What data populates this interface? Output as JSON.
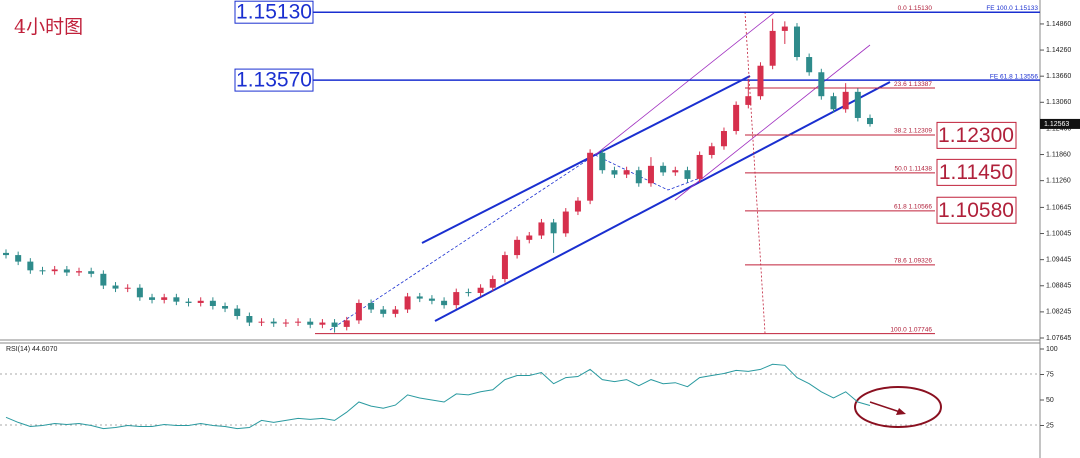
{
  "chart_data": {
    "type": "candlestick",
    "title": "4小时图",
    "up_color": "#d6304d",
    "down_color": "#2e8b8b",
    "ylim": [
      1.07645,
      1.1541
    ],
    "yticks": [
      {
        "value": 1.1486,
        "label": "1.14860"
      },
      {
        "value": 1.1426,
        "label": "1.14260"
      },
      {
        "value": 1.1366,
        "label": "1.13660"
      },
      {
        "value": 1.1306,
        "label": "1.13060"
      },
      {
        "value": 1.1246,
        "label": "1.12460"
      },
      {
        "value": 1.1186,
        "label": "1.11860"
      },
      {
        "value": 1.1126,
        "label": "1.11260"
      },
      1.10645,
      1.10045,
      1.09445,
      1.08845,
      1.08245,
      1.07645
    ],
    "open": [
      1.096,
      1.0955,
      1.094,
      1.092,
      1.0918,
      1.0922,
      1.0915,
      1.0918,
      1.0912,
      1.0885,
      1.0878,
      1.088,
      1.0858,
      1.0852,
      1.0858,
      1.0848,
      1.0845,
      1.085,
      1.0838,
      1.0832,
      1.0815,
      1.08,
      1.0802,
      1.0798,
      1.08,
      1.0802,
      1.0795,
      1.08,
      1.079,
      1.0805,
      1.0845,
      1.083,
      1.082,
      1.083,
      1.086,
      1.0855,
      1.085,
      1.084,
      1.087,
      1.0868,
      1.088,
      1.09,
      1.0955,
      1.099,
      1.1,
      1.103,
      1.1005,
      1.1055,
      1.108,
      1.119,
      1.115,
      1.114,
      1.115,
      1.112,
      1.116,
      1.1145,
      1.115,
      1.113,
      1.1185,
      1.1205,
      1.124,
      1.13,
      1.132,
      1.139,
      1.147,
      1.148,
      1.141,
      1.1375,
      1.132,
      1.129,
      1.133,
      1.127
    ],
    "high": [
      1.0968,
      1.0963,
      1.0948,
      1.0928,
      1.093,
      1.093,
      1.0926,
      1.0926,
      1.092,
      1.0893,
      1.0888,
      1.0888,
      1.0866,
      1.0866,
      1.0866,
      1.0856,
      1.0858,
      1.0858,
      1.0846,
      1.084,
      1.0823,
      1.081,
      1.081,
      1.0808,
      1.081,
      1.081,
      1.0808,
      1.0808,
      1.0813,
      1.0853,
      1.0853,
      1.0838,
      1.0838,
      1.0868,
      1.0868,
      1.0863,
      1.0858,
      1.0878,
      1.0878,
      1.0888,
      1.0908,
      1.0963,
      1.0998,
      1.1008,
      1.1038,
      1.1038,
      1.1063,
      1.1088,
      1.1198,
      1.1198,
      1.1158,
      1.1158,
      1.1158,
      1.118,
      1.1168,
      1.1158,
      1.1158,
      1.1193,
      1.1213,
      1.1248,
      1.1308,
      1.136,
      1.1398,
      1.1498,
      1.1492,
      1.1488,
      1.1418,
      1.1383,
      1.1328,
      1.135,
      1.1338,
      1.1278
    ],
    "low": [
      1.0947,
      1.0932,
      1.0912,
      1.091,
      1.091,
      1.0907,
      1.0907,
      1.0904,
      1.0877,
      1.087,
      1.087,
      1.085,
      1.0844,
      1.0844,
      1.084,
      1.0837,
      1.0837,
      1.083,
      1.0824,
      1.0807,
      1.0792,
      1.0792,
      1.079,
      1.079,
      1.0792,
      1.0787,
      1.0787,
      1.0777,
      1.0782,
      1.0797,
      1.0822,
      1.0812,
      1.0812,
      1.0822,
      1.0847,
      1.0842,
      1.0832,
      1.0832,
      1.086,
      1.086,
      1.0872,
      1.0892,
      1.0947,
      1.0982,
      1.0992,
      1.096,
      1.0997,
      1.1047,
      1.1072,
      1.1142,
      1.1132,
      1.1132,
      1.1112,
      1.1112,
      1.1137,
      1.1137,
      1.1122,
      1.1122,
      1.1177,
      1.1197,
      1.1232,
      1.1292,
      1.1312,
      1.1382,
      1.144,
      1.1402,
      1.1367,
      1.1312,
      1.1282,
      1.1282,
      1.1262,
      1.125
    ],
    "close": [
      1.0955,
      1.094,
      1.092,
      1.0918,
      1.0922,
      1.0915,
      1.0918,
      1.0912,
      1.0885,
      1.0878,
      1.088,
      1.0858,
      1.0852,
      1.0858,
      1.0848,
      1.0845,
      1.085,
      1.0838,
      1.0832,
      1.0815,
      1.08,
      1.0802,
      1.0798,
      1.08,
      1.0802,
      1.0795,
      1.08,
      1.079,
      1.0805,
      1.0845,
      1.083,
      1.082,
      1.083,
      1.086,
      1.0855,
      1.085,
      1.084,
      1.087,
      1.0868,
      1.088,
      1.09,
      1.0955,
      1.099,
      1.1,
      1.103,
      1.1005,
      1.1055,
      1.108,
      1.119,
      1.115,
      1.114,
      1.115,
      1.112,
      1.116,
      1.1145,
      1.115,
      1.113,
      1.1185,
      1.1205,
      1.124,
      1.13,
      1.132,
      1.139,
      1.147,
      1.148,
      1.141,
      1.1375,
      1.132,
      1.129,
      1.133,
      1.127,
      1.1256
    ],
    "current_price": {
      "value": 1.12563,
      "label": "1.12563"
    },
    "key_levels": [
      {
        "value": 1.1513,
        "label": "1.15130",
        "side": "left"
      },
      {
        "value": 1.1357,
        "label": "1.13570",
        "side": "left"
      },
      {
        "value": 1.123,
        "label": "1.12300",
        "side": "right"
      },
      {
        "value": 1.1145,
        "label": "1.11450",
        "side": "right"
      },
      {
        "value": 1.1058,
        "label": "1.10580",
        "side": "right"
      }
    ],
    "fib_levels": [
      {
        "value": 1.1513,
        "label": "0.0  1.15130"
      },
      {
        "value": 1.13387,
        "label": "23.6  1.13387"
      },
      {
        "value": 1.12309,
        "label": "38.2  1.12309"
      },
      {
        "value": 1.11438,
        "label": "50.0  1.11438"
      },
      {
        "value": 1.10566,
        "label": "61.8  1.10566"
      },
      {
        "value": 1.09326,
        "label": "78.6  1.09326"
      },
      {
        "value": 1.07746,
        "label": "100.0  1.07746"
      }
    ],
    "fe_levels": [
      {
        "value": 1.15133,
        "label": "FE 100.0  1.15133"
      },
      {
        "value": 1.13556,
        "label": "FE 61.8  1.13556"
      }
    ],
    "rsi_label": "RSI(14) 44.6070",
    "rsi_color": "#2a9aa0",
    "rsi_ylim": [
      0,
      100
    ],
    "rsi_yticks": [
      25,
      50,
      75,
      100
    ],
    "rsi": [
      33,
      28,
      24,
      25,
      27,
      26,
      27,
      25,
      22,
      23,
      25,
      24,
      24,
      26,
      25,
      25,
      27,
      25,
      24,
      22,
      23,
      30,
      28,
      30,
      32,
      31,
      32,
      30,
      38,
      48,
      44,
      42,
      45,
      55,
      52,
      50,
      48,
      56,
      55,
      58,
      60,
      70,
      74,
      74,
      77,
      66,
      72,
      73,
      80,
      70,
      68,
      70,
      64,
      70,
      66,
      67,
      63,
      72,
      74,
      76,
      79,
      78,
      80,
      85,
      84,
      72,
      66,
      58,
      52,
      58,
      48,
      44.607
    ]
  }
}
